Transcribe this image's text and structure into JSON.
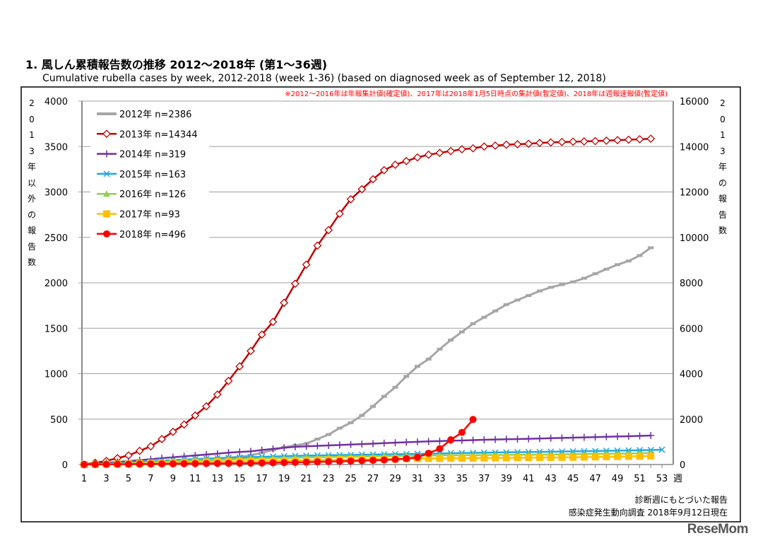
{
  "title": "1. 風しん累積報告数の推移  2012～2018年 (第1～36週)",
  "subtitle": "Cumulative rubella cases by week, 2012-2018 (week 1-36)  (based on diagnosed week as of September 12, 2018)",
  "logo": "ReseMom",
  "chart_data": {
    "type": "line",
    "note": "※2012～2016年は年報集計値(確定値)、2017年は2018年1月5日時点の集計値(暫定値)、2018年は週報速報値(暫定値)",
    "ylabel_left": "2013年以外の報告数",
    "ylabel_right": "2013年の報告数",
    "xunit": "週",
    "footer": [
      "診断週にもとづいた報告",
      "感染症発生動向調査 2018年9月12日現在"
    ],
    "xlim": [
      1,
      53
    ],
    "xticks": [
      1,
      3,
      5,
      7,
      9,
      11,
      13,
      15,
      17,
      19,
      21,
      23,
      25,
      27,
      29,
      31,
      33,
      35,
      37,
      39,
      41,
      43,
      45,
      47,
      49,
      51,
      53
    ],
    "ylim_left": [
      0,
      4000
    ],
    "yticks_left": [
      0,
      500,
      1000,
      1500,
      2000,
      2500,
      3000,
      3500,
      4000
    ],
    "ylim_right": [
      0,
      16000
    ],
    "yticks_right": [
      0,
      2000,
      4000,
      6000,
      8000,
      10000,
      12000,
      14000,
      16000
    ],
    "grid": true,
    "legend_position": "top-left",
    "series": [
      {
        "name": "2012年 n=2386",
        "axis": "left",
        "color": "#A6A6A6",
        "marker": "dash",
        "values": [
          0,
          3,
          6,
          10,
          14,
          18,
          23,
          28,
          34,
          40,
          48,
          56,
          65,
          75,
          85,
          100,
          130,
          160,
          190,
          210,
          230,
          280,
          330,
          400,
          460,
          540,
          640,
          750,
          850,
          970,
          1080,
          1160,
          1270,
          1370,
          1460,
          1550,
          1620,
          1690,
          1760,
          1810,
          1860,
          1910,
          1950,
          1980,
          2010,
          2050,
          2100,
          2150,
          2200,
          2240,
          2300,
          2386
        ]
      },
      {
        "name": "2013年 n=14344",
        "axis": "right",
        "color": "#C00000",
        "marker": "diamond-open",
        "values": [
          0,
          80,
          160,
          280,
          400,
          600,
          800,
          1120,
          1440,
          1760,
          2160,
          2560,
          3080,
          3680,
          4320,
          5000,
          5720,
          6280,
          7120,
          7960,
          8800,
          9640,
          10320,
          11040,
          11680,
          12120,
          12560,
          12960,
          13200,
          13360,
          13520,
          13640,
          13720,
          13800,
          13880,
          13920,
          14000,
          14040,
          14080,
          14100,
          14120,
          14160,
          14180,
          14200,
          14212,
          14224,
          14240,
          14260,
          14280,
          14300,
          14320,
          14344
        ]
      },
      {
        "name": "2014年 n=319",
        "axis": "left",
        "color": "#7030A0",
        "marker": "plus",
        "values": [
          0,
          8,
          18,
          28,
          38,
          48,
          58,
          70,
          80,
          90,
          100,
          110,
          120,
          130,
          138,
          145,
          160,
          172,
          185,
          195,
          200,
          205,
          210,
          215,
          220,
          225,
          230,
          235,
          240,
          245,
          250,
          255,
          258,
          262,
          265,
          268,
          272,
          275,
          278,
          280,
          283,
          286,
          290,
          293,
          296,
          299,
          302,
          305,
          308,
          311,
          315,
          319
        ]
      },
      {
        "name": "2015年 n=163",
        "axis": "left",
        "color": "#1FA9E1",
        "marker": "x",
        "values": [
          0,
          5,
          10,
          15,
          20,
          28,
          35,
          42,
          48,
          55,
          60,
          65,
          70,
          75,
          78,
          82,
          85,
          88,
          92,
          95,
          98,
          100,
          102,
          104,
          106,
          108,
          110,
          112,
          114,
          116,
          118,
          120,
          122,
          124,
          126,
          128,
          130,
          132,
          134,
          135,
          137,
          139,
          141,
          143,
          145,
          147,
          149,
          151,
          153,
          155,
          158,
          160,
          163
        ]
      },
      {
        "name": "2016年 n=126",
        "axis": "left",
        "color": "#92D050",
        "marker": "triangle",
        "values": [
          0,
          3,
          7,
          10,
          15,
          20,
          25,
          30,
          35,
          40,
          44,
          48,
          52,
          56,
          60,
          63,
          66,
          69,
          72,
          75,
          78,
          80,
          82,
          84,
          86,
          88,
          90,
          92,
          94,
          96,
          98,
          99,
          100,
          101,
          102,
          103,
          104,
          105,
          106,
          107,
          108,
          109,
          110,
          112,
          114,
          116,
          118,
          119,
          121,
          122,
          124,
          126
        ]
      },
      {
        "name": "2017年 n=93",
        "axis": "left",
        "color": "#FFC000",
        "marker": "square",
        "values": [
          0,
          2,
          4,
          6,
          8,
          10,
          13,
          16,
          19,
          22,
          25,
          28,
          31,
          33,
          35,
          37,
          39,
          41,
          43,
          45,
          47,
          49,
          51,
          53,
          55,
          57,
          59,
          61,
          63,
          65,
          66,
          67,
          68,
          69,
          70,
          71,
          72,
          73,
          74,
          75,
          76,
          77,
          78,
          79,
          80,
          82,
          84,
          86,
          88,
          90,
          91,
          93
        ]
      },
      {
        "name": "2018年 n=496",
        "axis": "left",
        "color": "#FF0000",
        "marker": "circle",
        "values": [
          0,
          1,
          2,
          3,
          4,
          5,
          6,
          7,
          8,
          9,
          10,
          11,
          12,
          13,
          14,
          15,
          17,
          19,
          21,
          23,
          26,
          29,
          32,
          35,
          38,
          42,
          46,
          50,
          56,
          65,
          80,
          124,
          174,
          272,
          353,
          496
        ]
      }
    ]
  }
}
